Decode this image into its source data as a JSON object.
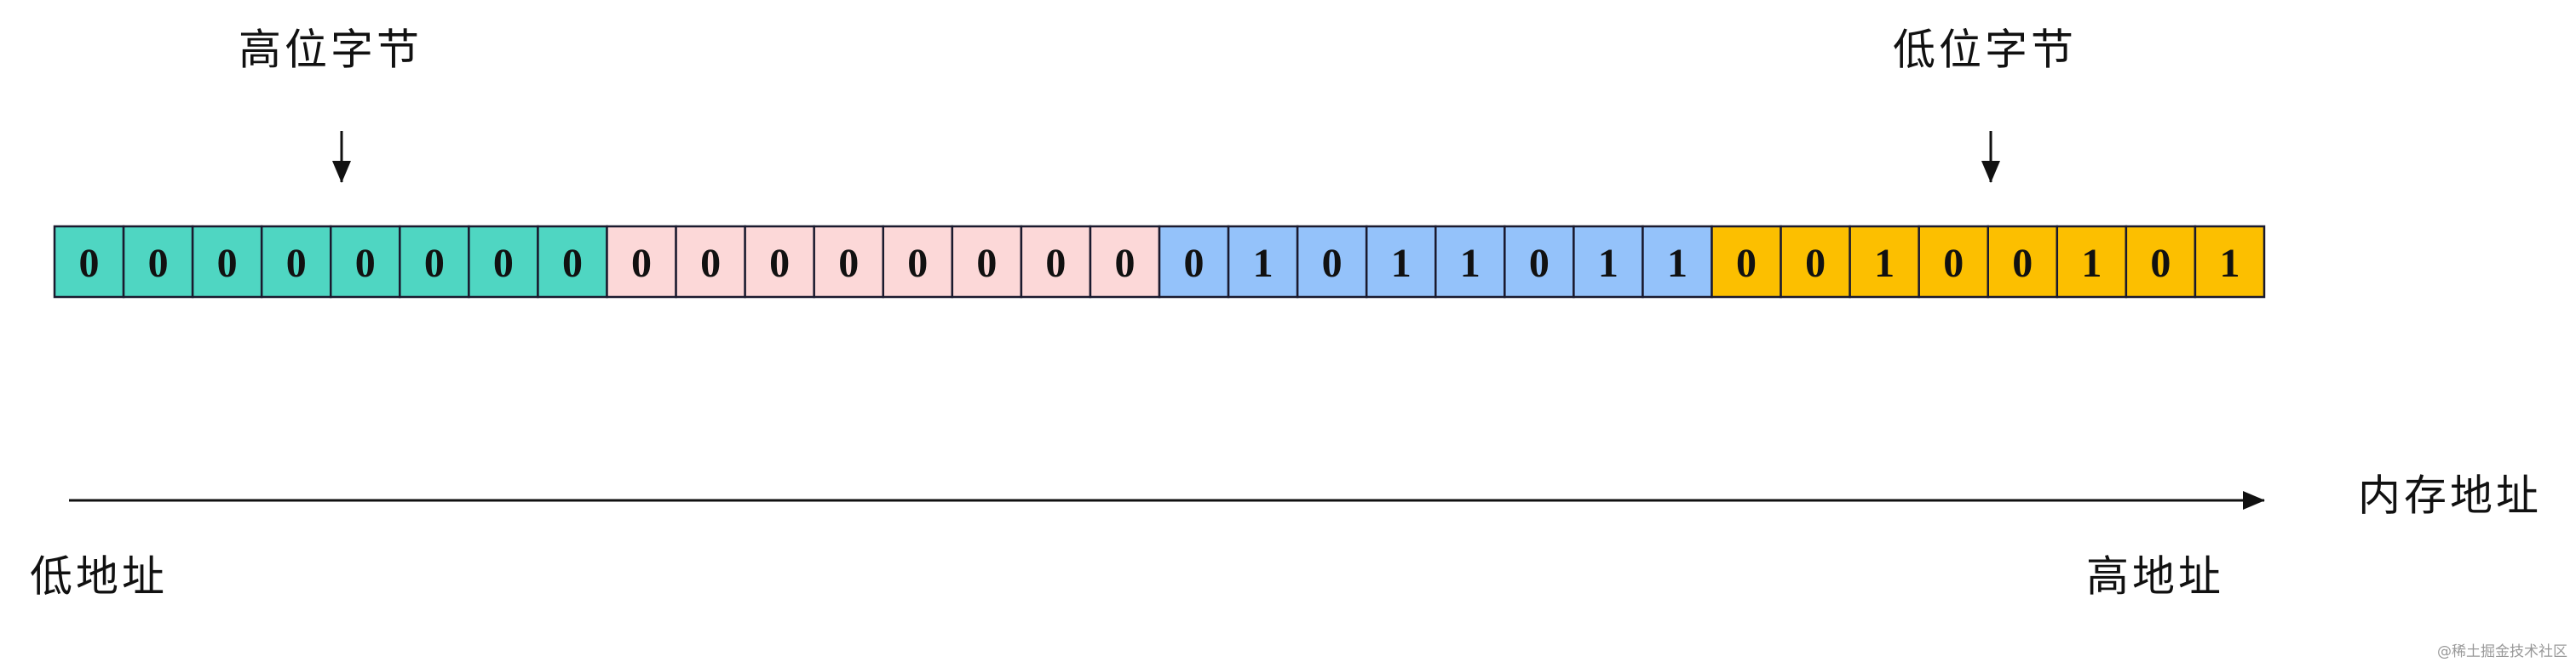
{
  "high_byte_label": "高位字节",
  "low_byte_label": "低位字节",
  "bytes": [
    {
      "color": "#4fd6c2",
      "bits": [
        0,
        0,
        0,
        0,
        0,
        0,
        0,
        0
      ]
    },
    {
      "color": "#fcd8d8",
      "bits": [
        0,
        0,
        0,
        0,
        0,
        0,
        0,
        0
      ]
    },
    {
      "color": "#94c2fa",
      "bits": [
        0,
        1,
        0,
        1,
        1,
        0,
        1,
        1
      ]
    },
    {
      "color": "#fcbf00",
      "bits": [
        0,
        0,
        1,
        0,
        0,
        1,
        0,
        1
      ]
    }
  ],
  "axis_label": "内存地址",
  "low_address": "低地址",
  "high_address": "高地址",
  "watermark": "@稀土掘金技术社区"
}
